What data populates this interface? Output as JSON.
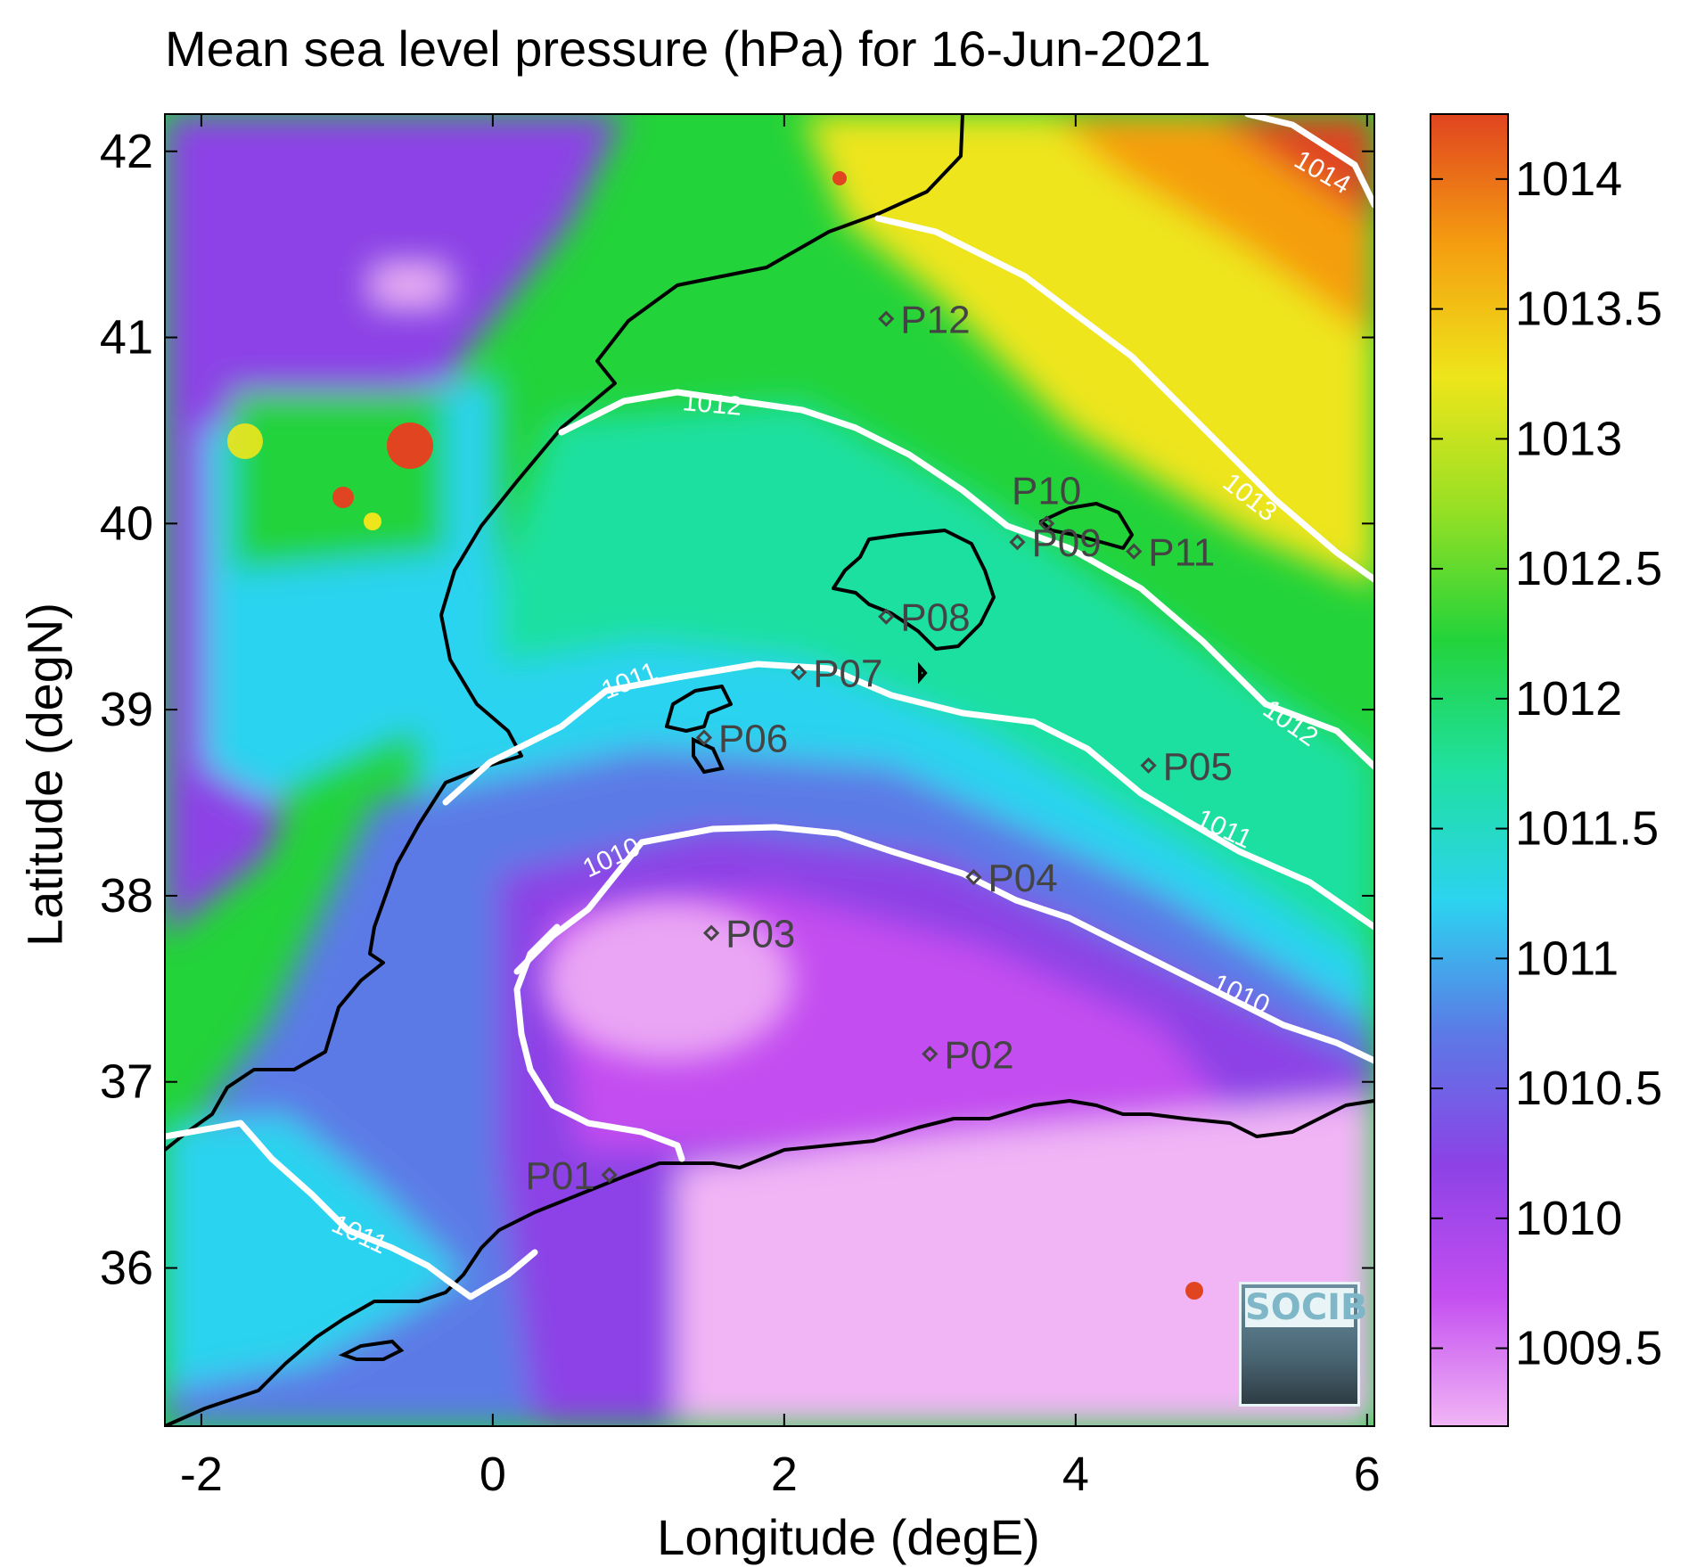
{
  "title": "Mean sea level pressure (hPa) for 16-Jun-2021",
  "axes": {
    "xlabel": "Longitude (degE)",
    "ylabel": "Latitude (degN)",
    "xlim": [
      -2.25,
      6.05
    ],
    "ylim": [
      35.15,
      42.2
    ],
    "xticks": [
      -2,
      0,
      2,
      4,
      6
    ],
    "yticks": [
      36,
      37,
      38,
      39,
      40,
      41,
      42
    ]
  },
  "colorbar": {
    "range": [
      1009.2,
      1014.25
    ],
    "ticks": [
      "1009.5",
      "1010",
      "1010.5",
      "1011",
      "1011.5",
      "1012",
      "1012.5",
      "1013",
      "1013.5",
      "1014"
    ],
    "colors": [
      "#f1b5f5",
      "#c34ef0",
      "#8c42e6",
      "#5b7ae6",
      "#2cd3ef",
      "#1fe0a0",
      "#23d33a",
      "#98e024",
      "#eee51a",
      "#f59e10",
      "#e04420"
    ]
  },
  "contours": [
    {
      "label": "1010",
      "level": 1010
    },
    {
      "label": "1011",
      "level": 1011
    },
    {
      "label": "1012",
      "level": 1012
    },
    {
      "label": "1013",
      "level": 1013
    },
    {
      "label": "1014",
      "level": 1014
    }
  ],
  "stations": [
    {
      "name": "P01",
      "lon": 0.8,
      "lat": 36.5
    },
    {
      "name": "P02",
      "lon": 3.0,
      "lat": 37.15
    },
    {
      "name": "P03",
      "lon": 1.5,
      "lat": 37.8
    },
    {
      "name": "P04",
      "lon": 3.3,
      "lat": 38.1
    },
    {
      "name": "P05",
      "lon": 4.5,
      "lat": 38.7
    },
    {
      "name": "P06",
      "lon": 1.45,
      "lat": 38.85
    },
    {
      "name": "P07",
      "lon": 2.1,
      "lat": 39.2
    },
    {
      "name": "P08",
      "lon": 2.7,
      "lat": 39.5
    },
    {
      "name": "P09",
      "lon": 3.6,
      "lat": 39.9
    },
    {
      "name": "P10",
      "lon": 3.8,
      "lat": 40.0
    },
    {
      "name": "P11",
      "lon": 4.4,
      "lat": 39.85
    },
    {
      "name": "P12",
      "lon": 2.7,
      "lat": 41.1
    }
  ],
  "logo": {
    "text": "SOCIB"
  }
}
